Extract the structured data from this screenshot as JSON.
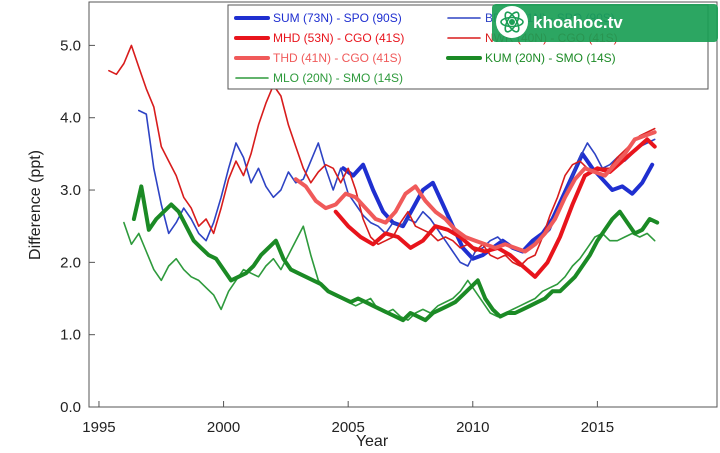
{
  "watermark": {
    "text": "khoahoc.tv",
    "icon": "atom-logo-icon",
    "color": "#1a9e55"
  },
  "chart_data": {
    "type": "line",
    "xlabel": "Year",
    "ylabel": "Difference (ppt)",
    "xlim": [
      1994.6,
      2019.8
    ],
    "ylim": [
      0,
      5.6
    ],
    "xticks": [
      "1995",
      "2000",
      "2005",
      "2010",
      "2015"
    ],
    "xtick_values": [
      1995,
      2000,
      2005,
      2010,
      2015
    ],
    "yticks": [
      "0.0",
      "1.0",
      "2.0",
      "3.0",
      "4.0",
      "5.0"
    ],
    "ytick_values": [
      0,
      1,
      2,
      3,
      4,
      5
    ],
    "grid": false,
    "legend_position": "top-right",
    "series": [
      {
        "name": "SUM (73N) - SPO (90S)",
        "color": "#1f2fd0",
        "width": 4,
        "x": [
          2004.8,
          2005.2,
          2005.6,
          2006.0,
          2006.4,
          2006.8,
          2007.2,
          2007.6,
          2008.0,
          2008.4,
          2008.8,
          2009.2,
          2009.6,
          2010.0,
          2010.4,
          2010.8,
          2011.2,
          2011.6,
          2012.0,
          2012.4,
          2012.8,
          2013.2,
          2013.6,
          2014.0,
          2014.4,
          2014.8,
          2015.2,
          2015.6,
          2016.0,
          2016.4,
          2016.8,
          2017.2
        ],
        "y": [
          3.3,
          3.2,
          3.35,
          3.0,
          2.7,
          2.55,
          2.5,
          2.75,
          3.0,
          3.1,
          2.8,
          2.5,
          2.2,
          2.05,
          2.1,
          2.2,
          2.3,
          2.2,
          2.15,
          2.3,
          2.4,
          2.6,
          2.9,
          3.2,
          3.5,
          3.3,
          3.15,
          3.0,
          3.05,
          2.95,
          3.1,
          3.35
        ]
      },
      {
        "name": "BRW (71N) - SPO (90S)",
        "color": "#2e43c4",
        "width": 1.6,
        "x": [
          1996.6,
          1996.9,
          1997.2,
          1997.5,
          1997.8,
          1998.1,
          1998.4,
          1998.7,
          1999.0,
          1999.3,
          1999.6,
          1999.9,
          2000.2,
          2000.5,
          2000.8,
          2001.1,
          2001.4,
          2001.7,
          2002.0,
          2002.3,
          2002.6,
          2002.9,
          2003.2,
          2003.5,
          2003.8,
          2004.1,
          2004.4,
          2004.7,
          2005.0,
          2005.3,
          2005.6,
          2005.9,
          2006.2,
          2006.5,
          2006.8,
          2007.1,
          2007.4,
          2007.7,
          2008.0,
          2008.3,
          2008.6,
          2008.9,
          2009.2,
          2009.5,
          2009.8,
          2010.1,
          2010.4,
          2010.7,
          2011.0,
          2011.3,
          2011.6,
          2011.9,
          2012.2,
          2012.5,
          2012.8,
          2013.1,
          2013.4,
          2013.7,
          2014.0,
          2014.3,
          2014.6,
          2014.9,
          2015.2,
          2015.5,
          2015.8,
          2016.1,
          2016.4,
          2016.7,
          2017.0,
          2017.3
        ],
        "y": [
          4.1,
          4.05,
          3.3,
          2.8,
          2.4,
          2.55,
          2.75,
          2.6,
          2.4,
          2.3,
          2.55,
          2.9,
          3.3,
          3.65,
          3.45,
          3.1,
          3.3,
          3.05,
          2.9,
          3.0,
          3.25,
          3.1,
          3.15,
          3.4,
          3.65,
          3.3,
          3.0,
          3.3,
          2.95,
          2.8,
          2.65,
          2.55,
          2.5,
          2.4,
          2.55,
          2.5,
          2.6,
          2.55,
          2.7,
          2.6,
          2.45,
          2.3,
          2.15,
          2.0,
          1.95,
          2.15,
          2.2,
          2.3,
          2.35,
          2.25,
          2.2,
          2.15,
          2.2,
          2.3,
          2.35,
          2.45,
          2.7,
          2.95,
          3.2,
          3.45,
          3.65,
          3.5,
          3.3,
          3.35,
          3.45,
          3.4,
          3.5,
          3.6,
          3.65,
          3.7
        ]
      },
      {
        "name": "MHD (53N) - CGO (41S)",
        "color": "#e8141c",
        "width": 4,
        "x": [
          2004.5,
          2005.0,
          2005.5,
          2006.0,
          2006.5,
          2007.0,
          2007.5,
          2008.0,
          2008.5,
          2009.0,
          2009.5,
          2010.0,
          2010.5,
          2011.0,
          2011.5,
          2012.0,
          2012.5,
          2013.0,
          2013.5,
          2014.0,
          2014.5,
          2015.0,
          2015.5,
          2016.0,
          2016.5,
          2017.0,
          2017.3
        ],
        "y": [
          2.7,
          2.5,
          2.35,
          2.25,
          2.4,
          2.35,
          2.2,
          2.3,
          2.5,
          2.45,
          2.35,
          2.2,
          2.15,
          2.2,
          2.1,
          1.95,
          1.8,
          2.0,
          2.35,
          2.8,
          3.2,
          3.3,
          3.25,
          3.4,
          3.55,
          3.7,
          3.6
        ]
      },
      {
        "name": "NWR (40N) - CGO (41S)",
        "color": "#d81c1c",
        "width": 1.6,
        "x": [
          1995.4,
          1995.7,
          1996.0,
          1996.3,
          1996.6,
          1996.9,
          1997.2,
          1997.5,
          1997.8,
          1998.1,
          1998.4,
          1998.7,
          1999.0,
          1999.3,
          1999.6,
          1999.9,
          2000.2,
          2000.5,
          2000.8,
          2001.1,
          2001.4,
          2001.7,
          2002.0,
          2002.3,
          2002.6,
          2002.9,
          2003.2,
          2003.5,
          2003.8,
          2004.1,
          2004.4,
          2004.7,
          2005.0,
          2005.3,
          2005.6,
          2005.9,
          2006.2,
          2006.5,
          2006.8,
          2007.1,
          2007.4,
          2007.7,
          2008.0,
          2008.3,
          2008.6,
          2008.9,
          2009.2,
          2009.5,
          2009.8,
          2010.1,
          2010.4,
          2010.7,
          2011.0,
          2011.3,
          2011.6,
          2011.9,
          2012.2,
          2012.5,
          2012.8,
          2013.1,
          2013.4,
          2013.7,
          2014.0,
          2014.3,
          2014.6,
          2014.9,
          2015.2,
          2015.5,
          2015.8,
          2016.1,
          2016.4,
          2016.7,
          2017.0,
          2017.3
        ],
        "y": [
          4.65,
          4.6,
          4.75,
          5.0,
          4.7,
          4.4,
          4.15,
          3.6,
          3.4,
          3.2,
          2.9,
          2.75,
          2.5,
          2.6,
          2.4,
          2.75,
          3.15,
          3.4,
          3.2,
          3.5,
          3.9,
          4.2,
          4.45,
          4.3,
          3.9,
          3.6,
          3.3,
          3.1,
          3.25,
          3.35,
          3.3,
          3.1,
          3.3,
          3.0,
          2.6,
          2.35,
          2.25,
          2.3,
          2.35,
          2.55,
          2.7,
          2.5,
          2.45,
          2.4,
          2.3,
          2.35,
          2.3,
          2.2,
          2.25,
          2.15,
          2.25,
          2.1,
          2.05,
          2.1,
          2.0,
          1.95,
          2.05,
          2.1,
          2.35,
          2.65,
          2.9,
          3.2,
          3.35,
          3.4,
          3.3,
          3.25,
          3.3,
          3.3,
          3.45,
          3.55,
          3.65,
          3.75,
          3.8,
          3.85
        ]
      },
      {
        "name": "THD (41N) - CGO (41S)",
        "color": "#f05a5a",
        "width": 4,
        "x": [
          2002.9,
          2003.3,
          2003.7,
          2004.1,
          2004.5,
          2004.9,
          2005.3,
          2005.7,
          2006.1,
          2006.5,
          2006.9,
          2007.3,
          2007.7,
          2008.1,
          2008.5,
          2008.9,
          2009.3,
          2009.7,
          2010.1,
          2010.5,
          2010.9,
          2011.3,
          2011.7,
          2012.1,
          2012.5,
          2012.9,
          2013.3,
          2013.7,
          2014.1,
          2014.5,
          2014.9,
          2015.3,
          2015.7,
          2016.1,
          2016.5,
          2016.9,
          2017.3
        ],
        "y": [
          3.15,
          3.05,
          2.85,
          2.75,
          2.8,
          2.95,
          2.9,
          2.75,
          2.6,
          2.55,
          2.7,
          2.95,
          3.05,
          2.85,
          2.7,
          2.6,
          2.45,
          2.35,
          2.3,
          2.25,
          2.2,
          2.25,
          2.2,
          2.15,
          2.25,
          2.4,
          2.6,
          2.9,
          3.15,
          3.3,
          3.25,
          3.2,
          3.35,
          3.5,
          3.7,
          3.75,
          3.8
        ]
      },
      {
        "name": "MLO (20N) - SMO (14S)",
        "color": "#2e9a3c",
        "width": 1.6,
        "x": [
          1996.0,
          1996.3,
          1996.6,
          1996.9,
          1997.2,
          1997.5,
          1997.8,
          1998.1,
          1998.4,
          1998.7,
          1999.0,
          1999.3,
          1999.6,
          1999.9,
          2000.2,
          2000.5,
          2000.8,
          2001.1,
          2001.4,
          2001.7,
          2002.0,
          2002.3,
          2002.6,
          2002.9,
          2003.2,
          2003.5,
          2003.8,
          2004.1,
          2004.4,
          2004.7,
          2005.0,
          2005.3,
          2005.6,
          2005.9,
          2006.2,
          2006.5,
          2006.8,
          2007.1,
          2007.4,
          2007.7,
          2008.0,
          2008.3,
          2008.6,
          2008.9,
          2009.2,
          2009.5,
          2009.8,
          2010.1,
          2010.4,
          2010.7,
          2011.0,
          2011.3,
          2011.6,
          2011.9,
          2012.2,
          2012.5,
          2012.8,
          2013.1,
          2013.4,
          2013.7,
          2014.0,
          2014.3,
          2014.6,
          2014.9,
          2015.2,
          2015.5,
          2015.8,
          2016.1,
          2016.4,
          2016.7,
          2017.0,
          2017.3
        ],
        "y": [
          2.55,
          2.25,
          2.4,
          2.15,
          1.9,
          1.75,
          1.95,
          2.05,
          1.9,
          1.8,
          1.75,
          1.65,
          1.55,
          1.35,
          1.6,
          1.75,
          1.9,
          1.85,
          1.8,
          1.95,
          2.05,
          1.9,
          2.1,
          2.3,
          2.5,
          2.1,
          1.75,
          1.65,
          1.55,
          1.5,
          1.45,
          1.4,
          1.45,
          1.5,
          1.35,
          1.3,
          1.35,
          1.25,
          1.2,
          1.3,
          1.35,
          1.3,
          1.4,
          1.45,
          1.5,
          1.6,
          1.75,
          1.6,
          1.45,
          1.3,
          1.25,
          1.3,
          1.35,
          1.4,
          1.45,
          1.5,
          1.6,
          1.65,
          1.7,
          1.8,
          1.95,
          2.05,
          2.2,
          2.35,
          2.4,
          2.3,
          2.3,
          2.35,
          2.4,
          2.35,
          2.4,
          2.3
        ]
      },
      {
        "name": "KUM (20N) - SMO (14S)",
        "color": "#1b8a25",
        "width": 4,
        "x": [
          1996.4,
          1996.7,
          1997.0,
          1997.3,
          1997.6,
          1997.9,
          1998.2,
          1998.5,
          1998.8,
          1999.1,
          1999.4,
          1999.7,
          2000.0,
          2000.3,
          2000.6,
          2000.9,
          2001.2,
          2001.5,
          2001.8,
          2002.1,
          2002.4,
          2002.7,
          2003.0,
          2003.3,
          2003.6,
          2003.9,
          2004.2,
          2004.5,
          2004.8,
          2005.1,
          2005.4,
          2005.7,
          2006.0,
          2006.3,
          2006.6,
          2006.9,
          2007.2,
          2007.5,
          2007.8,
          2008.1,
          2008.4,
          2008.7,
          2009.0,
          2009.3,
          2009.6,
          2009.9,
          2010.2,
          2010.5,
          2010.8,
          2011.1,
          2011.4,
          2011.7,
          2012.0,
          2012.3,
          2012.6,
          2012.9,
          2013.2,
          2013.5,
          2013.8,
          2014.1,
          2014.4,
          2014.7,
          2015.0,
          2015.3,
          2015.6,
          2015.9,
          2016.2,
          2016.5,
          2016.8,
          2017.1,
          2017.4
        ],
        "y": [
          2.6,
          3.05,
          2.45,
          2.6,
          2.7,
          2.8,
          2.7,
          2.5,
          2.3,
          2.2,
          2.1,
          2.05,
          1.9,
          1.75,
          1.8,
          1.85,
          1.95,
          2.1,
          2.2,
          2.3,
          2.05,
          1.9,
          1.85,
          1.8,
          1.75,
          1.7,
          1.6,
          1.55,
          1.5,
          1.45,
          1.5,
          1.45,
          1.4,
          1.35,
          1.3,
          1.25,
          1.2,
          1.3,
          1.25,
          1.2,
          1.3,
          1.35,
          1.4,
          1.45,
          1.55,
          1.65,
          1.75,
          1.5,
          1.35,
          1.25,
          1.3,
          1.3,
          1.35,
          1.4,
          1.45,
          1.5,
          1.6,
          1.6,
          1.7,
          1.8,
          1.95,
          2.1,
          2.3,
          2.45,
          2.6,
          2.7,
          2.55,
          2.4,
          2.45,
          2.6,
          2.55
        ]
      }
    ]
  }
}
